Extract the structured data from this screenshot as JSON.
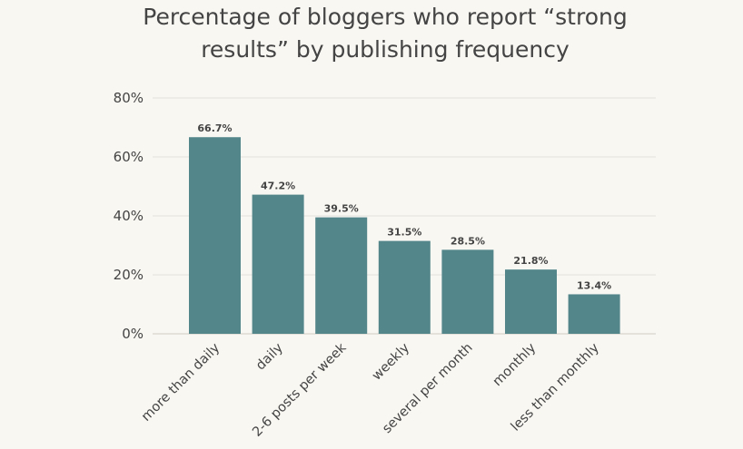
{
  "chart_data": {
    "type": "bar",
    "title_lines": [
      "Percentage of bloggers who report “strong",
      "results” by publishing frequency"
    ],
    "categories": [
      "more than daily",
      "daily",
      "2-6 posts per week",
      "weekly",
      "several per month",
      "monthly",
      "less than monthly"
    ],
    "values": [
      66.7,
      47.2,
      39.5,
      31.5,
      28.5,
      21.8,
      13.4
    ],
    "data_labels": [
      "66.7%",
      "47.2%",
      "39.5%",
      "31.5%",
      "28.5%",
      "21.8%",
      "13.4%"
    ],
    "y_ticks": [
      0,
      20,
      40,
      60,
      80
    ],
    "y_tick_labels": [
      "0%",
      "20%",
      "40%",
      "60%",
      "80%"
    ],
    "ylim": [
      0,
      80
    ],
    "xlabel": "",
    "ylabel": "",
    "grid": true,
    "bar_color": "#53868a"
  }
}
